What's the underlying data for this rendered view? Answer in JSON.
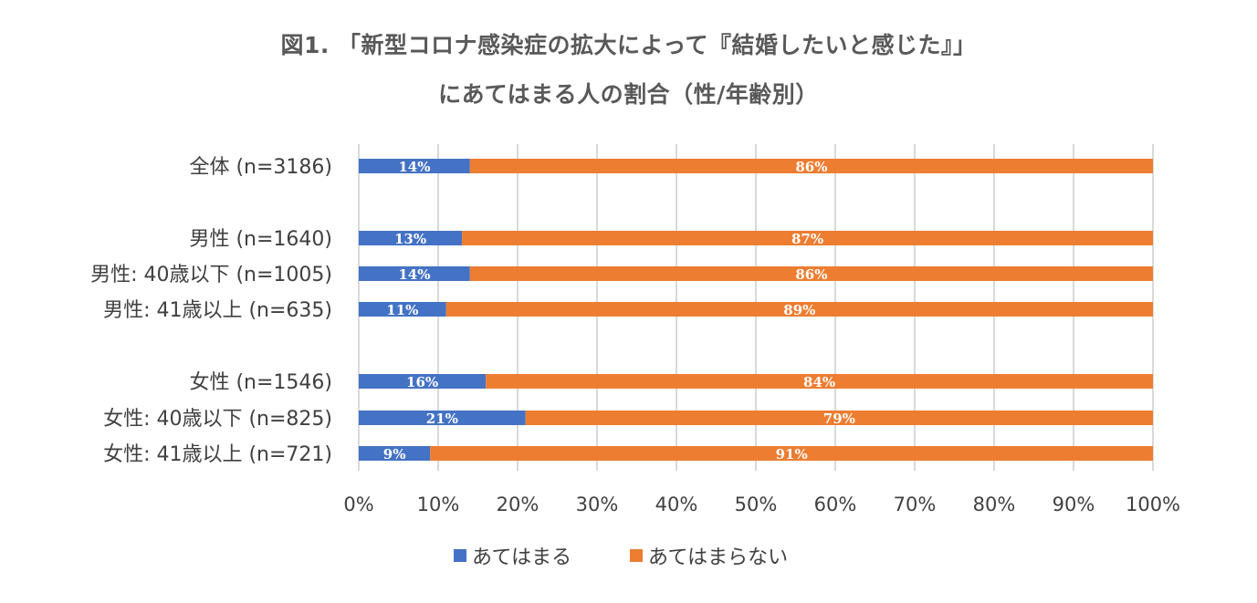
{
  "chart_data": {
    "type": "bar",
    "orientation": "horizontal",
    "stacked": true,
    "title_lines": [
      "図1. 「新型コロナ感染症の拡大によって『結婚したいと感じた』」",
      "にあてはまる人の割合（性/年齢別）"
    ],
    "categories": [
      "全体 (n=3186)",
      "男性 (n=1640)",
      "男性: 40歳以下 (n=1005)",
      "男性: 41歳以上 (n=635)",
      "女性 (n=1546)",
      "女性: 40歳以下 (n=825)",
      "女性: 41歳以上 (n=721)"
    ],
    "category_groups": [
      0,
      1,
      1,
      1,
      2,
      2,
      2
    ],
    "series": [
      {
        "name": "あてはまる",
        "color": "#4472C4",
        "values": [
          14,
          13,
          14,
          11,
          16,
          21,
          9
        ],
        "labels": [
          "14%",
          "13%",
          "14%",
          "11%",
          "16%",
          "21%",
          "9%"
        ]
      },
      {
        "name": "あてはまらない",
        "color": "#ED7D31",
        "values": [
          86,
          87,
          86,
          89,
          84,
          79,
          91
        ],
        "labels": [
          "86%",
          "87%",
          "86%",
          "89%",
          "84%",
          "79%",
          "91%"
        ]
      }
    ],
    "xlim": [
      0,
      100
    ],
    "x_ticks": [
      "0%",
      "10%",
      "20%",
      "30%",
      "40%",
      "50%",
      "60%",
      "70%",
      "80%",
      "90%",
      "100%"
    ],
    "grid": true,
    "gridline_color": "#D9D9D9",
    "legend_position": "bottom"
  }
}
